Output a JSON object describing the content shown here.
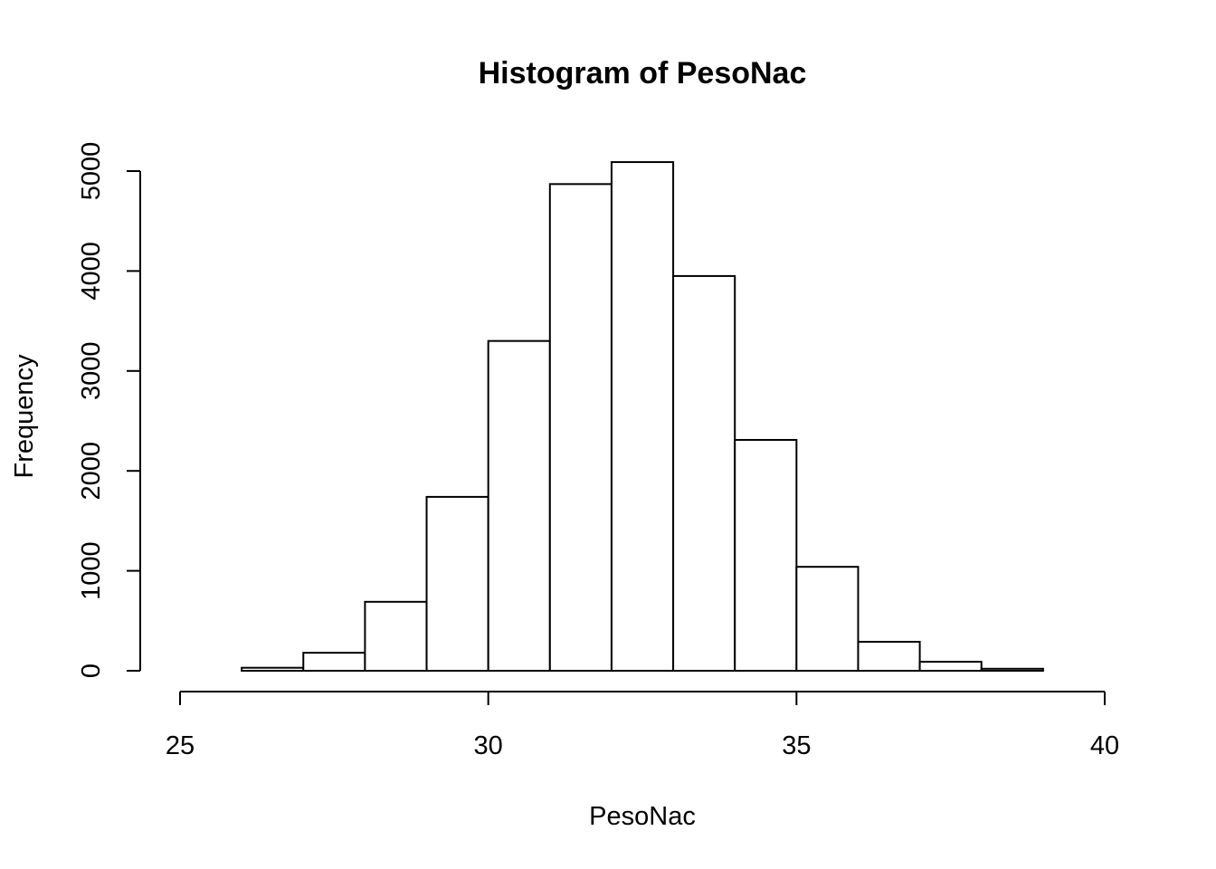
{
  "chart_data": {
    "type": "bar",
    "title": "Histogram of PesoNac",
    "xlabel": "PesoNac",
    "ylabel": "Frequency",
    "xlim": [
      25,
      40
    ],
    "ylim": [
      0,
      5000
    ],
    "x_ticks": [
      25,
      30,
      35,
      40
    ],
    "y_ticks": [
      0,
      1000,
      2000,
      3000,
      4000,
      5000
    ],
    "bins": [
      {
        "from": 25,
        "to": 26,
        "count": 0
      },
      {
        "from": 26,
        "to": 27,
        "count": 30
      },
      {
        "from": 27,
        "to": 28,
        "count": 180
      },
      {
        "from": 28,
        "to": 29,
        "count": 690
      },
      {
        "from": 29,
        "to": 30,
        "count": 1740
      },
      {
        "from": 30,
        "to": 31,
        "count": 3300
      },
      {
        "from": 31,
        "to": 32,
        "count": 4870
      },
      {
        "from": 32,
        "to": 33,
        "count": 5090
      },
      {
        "from": 33,
        "to": 34,
        "count": 3950
      },
      {
        "from": 34,
        "to": 35,
        "count": 2310
      },
      {
        "from": 35,
        "to": 36,
        "count": 1040
      },
      {
        "from": 36,
        "to": 37,
        "count": 290
      },
      {
        "from": 37,
        "to": 38,
        "count": 90
      },
      {
        "from": 38,
        "to": 39,
        "count": 20
      },
      {
        "from": 39,
        "to": 40,
        "count": 0
      }
    ],
    "grid": false,
    "fill_color": "#ffffff",
    "stroke_color": "#000000"
  }
}
